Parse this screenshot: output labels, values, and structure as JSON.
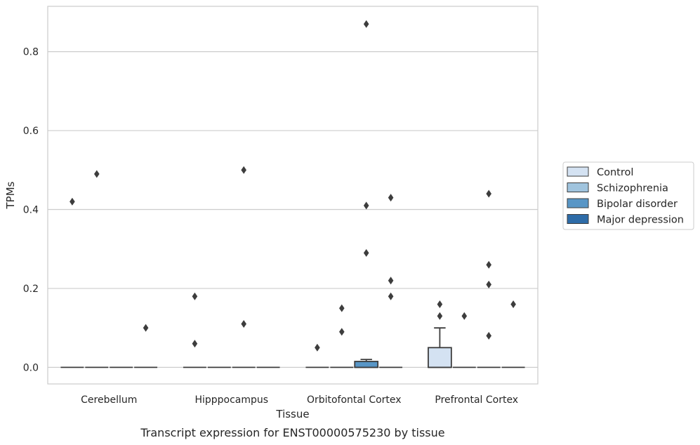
{
  "chart_data": {
    "type": "box",
    "title": "",
    "xlabel": "Tissue",
    "ylabel": "TPMs",
    "caption": "Transcript expression for ENST00000575230 by tissue",
    "ylim": [
      -0.042,
      0.915
    ],
    "yticks": [
      "0.0",
      "0.2",
      "0.4",
      "0.6",
      "0.8"
    ],
    "ytick_values": [
      0.0,
      0.2,
      0.4,
      0.6,
      0.8
    ],
    "grid": "horizontal",
    "legend_position": "right",
    "categories": [
      "Cerebellum",
      "Hipppocampus",
      "Orbitofontal Cortex",
      "Prefrontal Cortex"
    ],
    "series": [
      {
        "name": "Control",
        "color": "#d4e2f2",
        "boxes": [
          {
            "q1": 0,
            "median": 0,
            "q3": 0,
            "whisker_low": 0,
            "whisker_high": 0,
            "outliers": [
              0.42
            ]
          },
          {
            "q1": 0,
            "median": 0,
            "q3": 0,
            "whisker_low": 0,
            "whisker_high": 0,
            "outliers": [
              0.06,
              0.18
            ]
          },
          {
            "q1": 0,
            "median": 0,
            "q3": 0,
            "whisker_low": 0,
            "whisker_high": 0,
            "outliers": [
              0.05
            ]
          },
          {
            "q1": 0,
            "median": 0,
            "q3": 0.05,
            "whisker_low": 0,
            "whisker_high": 0.1,
            "outliers": [
              0.13,
              0.16
            ]
          }
        ]
      },
      {
        "name": "Schizophrenia",
        "color": "#a0c4de",
        "boxes": [
          {
            "q1": 0,
            "median": 0,
            "q3": 0,
            "whisker_low": 0,
            "whisker_high": 0,
            "outliers": [
              0.49
            ]
          },
          {
            "q1": 0,
            "median": 0,
            "q3": 0,
            "whisker_low": 0,
            "whisker_high": 0,
            "outliers": []
          },
          {
            "q1": 0,
            "median": 0,
            "q3": 0,
            "whisker_low": 0,
            "whisker_high": 0,
            "outliers": [
              0.09,
              0.15
            ]
          },
          {
            "q1": 0,
            "median": 0,
            "q3": 0,
            "whisker_low": 0,
            "whisker_high": 0,
            "outliers": [
              0.13
            ]
          }
        ]
      },
      {
        "name": "Bipolar disorder",
        "color": "#5896c6",
        "boxes": [
          {
            "q1": 0,
            "median": 0,
            "q3": 0,
            "whisker_low": 0,
            "whisker_high": 0,
            "outliers": []
          },
          {
            "q1": 0,
            "median": 0,
            "q3": 0,
            "whisker_low": 0,
            "whisker_high": 0,
            "outliers": [
              0.11,
              0.5
            ]
          },
          {
            "q1": 0,
            "median": 0,
            "q3": 0.015,
            "whisker_low": 0,
            "whisker_high": 0.02,
            "outliers": [
              0.29,
              0.41,
              0.87
            ]
          },
          {
            "q1": 0,
            "median": 0,
            "q3": 0,
            "whisker_low": 0,
            "whisker_high": 0,
            "outliers": [
              0.08,
              0.21,
              0.26,
              0.44
            ]
          }
        ]
      },
      {
        "name": "Major depression",
        "color": "#2e6ca8",
        "boxes": [
          {
            "q1": 0,
            "median": 0,
            "q3": 0,
            "whisker_low": 0,
            "whisker_high": 0,
            "outliers": [
              0.1
            ]
          },
          {
            "q1": 0,
            "median": 0,
            "q3": 0,
            "whisker_low": 0,
            "whisker_high": 0,
            "outliers": []
          },
          {
            "q1": 0,
            "median": 0,
            "q3": 0,
            "whisker_low": 0,
            "whisker_high": 0,
            "outliers": [
              0.18,
              0.22,
              0.43
            ]
          },
          {
            "q1": 0,
            "median": 0,
            "q3": 0,
            "whisker_low": 0,
            "whisker_high": 0,
            "outliers": [
              0.16
            ]
          }
        ]
      }
    ]
  }
}
